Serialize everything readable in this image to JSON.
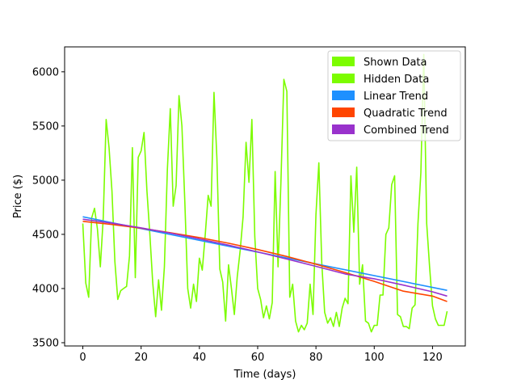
{
  "chart_data": {
    "type": "line",
    "xlabel": "Time (days)",
    "ylabel": "Price ($)",
    "xlim": [
      -6.25,
      131.25
    ],
    "ylim": [
      3470,
      6230
    ],
    "x_ticks": [
      0,
      20,
      40,
      60,
      80,
      100,
      120
    ],
    "y_ticks": [
      3500,
      4000,
      4500,
      5000,
      5500,
      6000
    ],
    "legend_position": "top-right",
    "grid": false,
    "series": [
      {
        "name": "Shown Data",
        "color": "#7CFC00",
        "kind": "legend-only",
        "x": [],
        "y": []
      },
      {
        "name": "Hidden Data",
        "color": "#7CFC00",
        "kind": "data",
        "x": [
          0,
          1,
          2,
          3,
          4,
          5,
          6,
          7,
          8,
          9,
          10,
          11,
          12,
          13,
          14,
          15,
          16,
          17,
          18,
          19,
          20,
          21,
          22,
          23,
          24,
          25,
          26,
          27,
          28,
          29,
          30,
          31,
          32,
          33,
          34,
          35,
          36,
          37,
          38,
          39,
          40,
          41,
          42,
          43,
          44,
          45,
          46,
          47,
          48,
          49,
          50,
          51,
          52,
          53,
          54,
          55,
          56,
          57,
          58,
          59,
          60,
          61,
          62,
          63,
          64,
          65,
          66,
          67,
          68,
          69,
          70,
          71,
          72,
          73,
          74,
          75,
          76,
          77,
          78,
          79,
          80,
          81,
          82,
          83,
          84,
          85,
          86,
          87,
          88,
          89,
          90,
          91,
          92,
          93,
          94,
          95,
          96,
          97,
          98,
          99,
          100,
          101,
          102,
          103,
          104,
          105,
          106,
          107,
          108,
          109,
          110,
          111,
          112,
          113,
          114,
          115,
          116,
          117,
          118,
          119,
          120,
          121,
          122,
          123,
          124,
          125
        ],
        "y": [
          4600,
          4050,
          3920,
          4650,
          4740,
          4550,
          4200,
          4650,
          5560,
          5300,
          4900,
          4250,
          3900,
          3980,
          4000,
          4020,
          4300,
          5300,
          4100,
          5210,
          5270,
          5440,
          4900,
          4500,
          4050,
          3740,
          4080,
          3800,
          4200,
          5100,
          5660,
          4760,
          4950,
          5780,
          5500,
          4800,
          4000,
          3820,
          4040,
          3880,
          4280,
          4170,
          4500,
          4860,
          4760,
          5810,
          5200,
          4180,
          4060,
          3700,
          4220,
          4000,
          3760,
          4110,
          4350,
          4660,
          5350,
          4980,
          5560,
          4480,
          4000,
          3900,
          3730,
          3840,
          3720,
          3870,
          5080,
          4200,
          4990,
          5930,
          5820,
          3920,
          4040,
          3700,
          3600,
          3660,
          3620,
          3680,
          4040,
          3760,
          4680,
          5160,
          4240,
          3780,
          3680,
          3730,
          3650,
          3780,
          3650,
          3820,
          3910,
          3860,
          5040,
          4520,
          5120,
          4040,
          4220,
          3700,
          3680,
          3600,
          3660,
          3660,
          3940,
          3940,
          4500,
          4560,
          4960,
          5040,
          3760,
          3740,
          3650,
          3650,
          3630,
          3820,
          3850,
          4600,
          5070,
          6160,
          4600,
          4200,
          3840,
          3720,
          3660,
          3660,
          3660,
          3790
        ]
      },
      {
        "name": "Linear Trend",
        "color": "#1E90FF",
        "kind": "trend",
        "x": [
          0,
          125
        ],
        "y": [
          4662,
          3983
        ]
      },
      {
        "name": "Quadratic Trend",
        "color": "#FF4500",
        "kind": "trend",
        "x": [
          0,
          10,
          20,
          30,
          40,
          50,
          60,
          70,
          80,
          90,
          100,
          110,
          120,
          125
        ],
        "y": [
          4620,
          4591,
          4557,
          4515,
          4470,
          4418,
          4360,
          4296,
          4225,
          4148,
          4066,
          3976,
          3930,
          3880
        ]
      },
      {
        "name": "Combined Trend",
        "color": "#9932CC",
        "kind": "trend",
        "x": [
          0,
          10,
          20,
          30,
          40,
          50,
          60,
          70,
          80,
          90,
          100,
          110,
          120,
          125
        ],
        "y": [
          4640,
          4603,
          4560,
          4511,
          4458,
          4400,
          4338,
          4272,
          4205,
          4135,
          4090,
          4032,
          3970,
          3930
        ]
      }
    ]
  }
}
